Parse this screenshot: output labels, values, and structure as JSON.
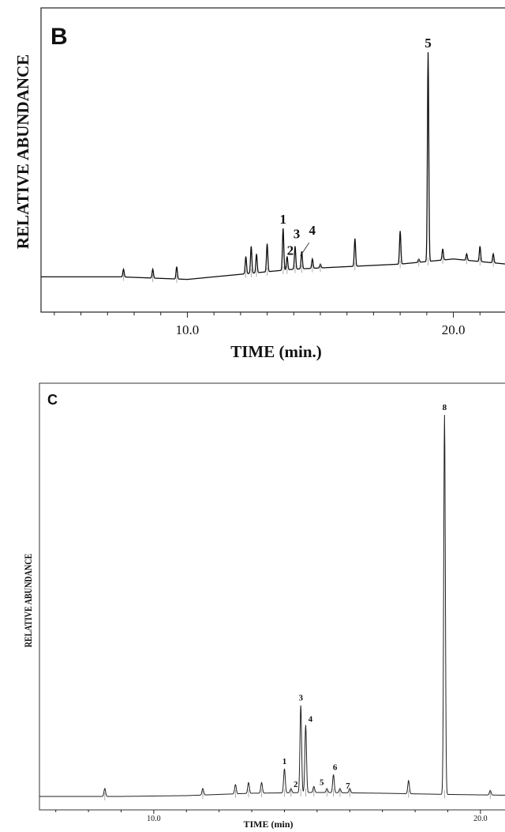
{
  "chart_data": [
    {
      "type": "line",
      "panel_label": "B",
      "xlabel": "TIME (min.)",
      "ylabel": "RELATIVE ABUNDANCE",
      "xlim": [
        4.5,
        22.0
      ],
      "ylim": [
        0,
        100
      ],
      "x_ticks": [
        10.0,
        20.0
      ],
      "tick_labels": [
        "10.0",
        "20.0"
      ],
      "baseline": [
        [
          4.5,
          7
        ],
        [
          7.5,
          7
        ],
        [
          10.0,
          6
        ],
        [
          12.0,
          8
        ],
        [
          14.0,
          10
        ],
        [
          16.0,
          11
        ],
        [
          18.0,
          12
        ],
        [
          20.0,
          14
        ],
        [
          22.0,
          12
        ]
      ],
      "peaks": [
        {
          "x": 7.6,
          "y": 10
        },
        {
          "x": 8.7,
          "y": 10
        },
        {
          "x": 9.6,
          "y": 11
        },
        {
          "x": 12.2,
          "y": 15
        },
        {
          "x": 12.4,
          "y": 19
        },
        {
          "x": 12.6,
          "y": 16
        },
        {
          "x": 13.0,
          "y": 20
        },
        {
          "x": 13.6,
          "y": 26
        },
        {
          "x": 13.75,
          "y": 15
        },
        {
          "x": 14.05,
          "y": 19
        },
        {
          "x": 14.3,
          "y": 17
        },
        {
          "x": 14.7,
          "y": 14
        },
        {
          "x": 15.0,
          "y": 12
        },
        {
          "x": 16.3,
          "y": 22
        },
        {
          "x": 18.0,
          "y": 25
        },
        {
          "x": 18.7,
          "y": 14
        },
        {
          "x": 19.05,
          "y": 95
        },
        {
          "x": 19.6,
          "y": 18
        },
        {
          "x": 20.5,
          "y": 16
        },
        {
          "x": 21.0,
          "y": 19
        },
        {
          "x": 21.5,
          "y": 16
        }
      ],
      "annotations": [
        {
          "text": "1",
          "x": 13.6,
          "y": 26
        },
        {
          "text": "2",
          "x": 13.75,
          "y": 15
        },
        {
          "text": "3",
          "x": 14.05,
          "y": 19
        },
        {
          "text": "4",
          "x": 14.4,
          "y": 21
        },
        {
          "text": "5",
          "x": 19.05,
          "y": 95
        }
      ],
      "grid": false,
      "color": "#111111"
    },
    {
      "type": "line",
      "panel_label": "C",
      "xlabel": "TIME (min)",
      "ylabel": "RELATIVE ABUNDANCE",
      "xlim": [
        6.5,
        20.8
      ],
      "ylim": [
        0,
        100
      ],
      "x_ticks": [
        10.0,
        20.0
      ],
      "tick_labels": [
        "10.0",
        "20.0"
      ],
      "baseline": [
        [
          6.5,
          1
        ],
        [
          9.0,
          1
        ],
        [
          11.0,
          1.2
        ],
        [
          13.0,
          1.8
        ],
        [
          15.0,
          2
        ],
        [
          17.0,
          1.8
        ],
        [
          19.0,
          1.5
        ],
        [
          20.8,
          1.3
        ]
      ],
      "peaks": [
        {
          "x": 8.5,
          "y": 3
        },
        {
          "x": 11.5,
          "y": 3
        },
        {
          "x": 12.5,
          "y": 4
        },
        {
          "x": 12.9,
          "y": 4.5
        },
        {
          "x": 13.3,
          "y": 4.5
        },
        {
          "x": 14.0,
          "y": 8
        },
        {
          "x": 14.2,
          "y": 3
        },
        {
          "x": 14.5,
          "y": 24
        },
        {
          "x": 14.65,
          "y": 19
        },
        {
          "x": 14.9,
          "y": 3.5
        },
        {
          "x": 15.3,
          "y": 3
        },
        {
          "x": 15.5,
          "y": 6.5
        },
        {
          "x": 15.7,
          "y": 3
        },
        {
          "x": 16.0,
          "y": 3
        },
        {
          "x": 17.8,
          "y": 5
        },
        {
          "x": 18.9,
          "y": 97
        },
        {
          "x": 20.3,
          "y": 2.5
        }
      ],
      "annotations": [
        {
          "text": "1",
          "x": 14.0,
          "y": 8
        },
        {
          "text": "2",
          "x": 14.2,
          "y": 3
        },
        {
          "text": "3",
          "x": 14.5,
          "y": 24
        },
        {
          "text": "4",
          "x": 14.65,
          "y": 19
        },
        {
          "text": "5",
          "x": 14.9,
          "y": 3.5
        },
        {
          "text": "6",
          "x": 15.5,
          "y": 6.5
        },
        {
          "text": "7",
          "x": 15.7,
          "y": 3
        },
        {
          "text": "8",
          "x": 18.9,
          "y": 97
        }
      ],
      "grid": false,
      "color": "#222222"
    }
  ]
}
